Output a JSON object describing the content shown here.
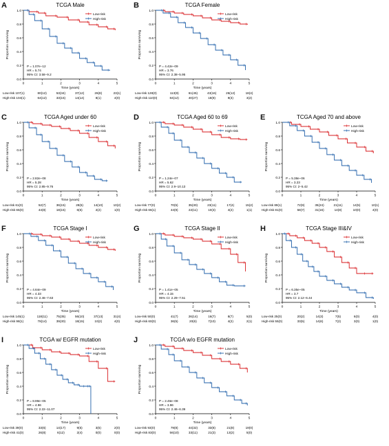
{
  "common": {
    "ylabel": "Proportion surviving",
    "xlabel": "Time (years)",
    "legend_low": "Low-risk",
    "legend_high": "High-risk",
    "low_color": "#d7191c",
    "high_color": "#1f5fa8"
  },
  "chart_data": [
    {
      "letter": "A",
      "type": "line",
      "title": "TCGA Male",
      "xlim": [
        0,
        5
      ],
      "ylim": [
        0,
        1
      ],
      "x_ticks": [
        "0",
        "1",
        "2",
        "3",
        "4",
        "5"
      ],
      "y_ticks": [
        "0.0",
        "0.2",
        "0.4",
        "0.6",
        "0.8",
        "1.0"
      ],
      "stats": [
        "P = 1.07e−12",
        "HR = 5.74",
        "95% CI: 3.58−9.2"
      ],
      "risk_low": [
        "Low-risk 107(1)",
        "80(12)",
        "53(34)",
        "37(12)",
        "26(8)",
        "23(1)"
      ],
      "risk_high": [
        "High-risk 104(1)",
        "64(12)",
        "33(15)",
        "14(14)",
        "8(1)",
        "4(0)"
      ],
      "series": [
        {
          "name": "Low-risk",
          "x": [
            0,
            0.3,
            0.8,
            1.2,
            1.8,
            2.4,
            3.0,
            3.5,
            4.0,
            4.5,
            4.9
          ],
          "y": [
            1,
            0.98,
            0.96,
            0.92,
            0.9,
            0.86,
            0.83,
            0.79,
            0.76,
            0.73,
            0.71
          ]
        },
        {
          "name": "High-risk",
          "x": [
            0,
            0.3,
            0.6,
            1.0,
            1.4,
            1.8,
            2.2,
            2.6,
            3.0,
            3.4,
            3.8,
            4.2,
            4.6
          ],
          "y": [
            1,
            0.94,
            0.85,
            0.73,
            0.62,
            0.52,
            0.45,
            0.38,
            0.3,
            0.24,
            0.19,
            0.13,
            0.12
          ]
        }
      ]
    },
    {
      "letter": "B",
      "type": "line",
      "title": "TCGA Female",
      "xlim": [
        0,
        5
      ],
      "ylim": [
        0,
        1
      ],
      "x_ticks": [
        "0",
        "1",
        "2",
        "3",
        "4",
        "5"
      ],
      "y_ticks": [
        "0.0",
        "0.2",
        "0.4",
        "0.6",
        "0.8",
        "1.0"
      ],
      "stats": [
        "P = 4.42e−09",
        "HR = 3.76",
        "95% CI: 2.38−5.95"
      ],
      "risk_low": [
        "Low-risk 128(0)",
        "113(9)",
        "61(45)",
        "43(16)",
        "26(12)",
        "18(4)"
      ],
      "risk_high": [
        "High-risk 110(0)",
        "84(12)",
        "40(27)",
        "18(9)",
        "9(3)",
        "3(2)"
      ],
      "series": [
        {
          "name": "Low-risk",
          "x": [
            0,
            0.5,
            1.0,
            1.5,
            2.0,
            2.5,
            3.0,
            3.5,
            4.0,
            4.5,
            4.9
          ],
          "y": [
            1,
            0.98,
            0.96,
            0.94,
            0.92,
            0.89,
            0.86,
            0.84,
            0.82,
            0.8,
            0.79
          ]
        },
        {
          "name": "High-risk",
          "x": [
            0,
            0.4,
            0.8,
            1.2,
            1.6,
            2.0,
            2.4,
            2.8,
            3.2,
            3.6,
            4.0,
            4.4,
            4.8
          ],
          "y": [
            1,
            0.96,
            0.9,
            0.82,
            0.75,
            0.67,
            0.59,
            0.5,
            0.42,
            0.35,
            0.28,
            0.2,
            0.13
          ]
        }
      ]
    },
    {
      "letter": "C",
      "type": "line",
      "title": "TCGA Aged under 60",
      "xlim": [
        0,
        5
      ],
      "ylim": [
        0,
        1
      ],
      "x_ticks": [
        "0",
        "1",
        "2",
        "3",
        "4",
        "5"
      ],
      "y_ticks": [
        "0.0",
        "0.2",
        "0.4",
        "0.6",
        "0.8",
        "1.0"
      ],
      "stats": [
        "P = 2.82e−08",
        "HR = 5.28",
        "95% CI: 2.85−9.76"
      ],
      "risk_low": [
        "Low-risk 61(0)",
        "52(7)",
        "36(15)",
        "28(6)",
        "14(10)",
        "10(2)"
      ],
      "risk_high": [
        "High-risk 65(0)",
        "44(8)",
        "18(15)",
        "6(6)",
        "2(2)",
        "1(0)"
      ],
      "series": [
        {
          "name": "Low-risk",
          "x": [
            0,
            0.5,
            1.0,
            1.5,
            2.0,
            2.5,
            3.0,
            3.5,
            4.0,
            4.5,
            4.9
          ],
          "y": [
            1,
            0.98,
            0.96,
            0.94,
            0.91,
            0.88,
            0.84,
            0.78,
            0.72,
            0.66,
            0.62
          ]
        },
        {
          "name": "High-risk",
          "x": [
            0,
            0.3,
            0.7,
            1.0,
            1.4,
            1.8,
            2.2,
            2.6,
            3.0,
            3.4,
            3.8,
            4.2,
            4.5
          ],
          "y": [
            1,
            0.92,
            0.82,
            0.72,
            0.62,
            0.52,
            0.43,
            0.35,
            0.27,
            0.22,
            0.17,
            0.15,
            0.15
          ]
        }
      ]
    },
    {
      "letter": "D",
      "type": "line",
      "title": "TCGA Aged 60 to 69",
      "xlim": [
        0,
        5
      ],
      "ylim": [
        0,
        1
      ],
      "x_ticks": [
        "0",
        "1",
        "2",
        "3",
        "4",
        "5"
      ],
      "y_ticks": [
        "0.0",
        "0.2",
        "0.4",
        "0.6",
        "0.8",
        "1.0"
      ],
      "stats": [
        "P = 1.24e−07",
        "HR = 5.62",
        "95% CI: 2.9−10.13"
      ],
      "risk_low": [
        "Low-risk 77(0)",
        "70(5)",
        "35(30)",
        "23(11)",
        "17(4)",
        "15(2)"
      ],
      "risk_high": [
        "High-risk 66(1)",
        "44(9)",
        "22(11)",
        "10(3)",
        "4(2)",
        "1(1)"
      ],
      "series": [
        {
          "name": "Low-risk",
          "x": [
            0,
            0.5,
            1.0,
            1.5,
            2.0,
            2.5,
            3.0,
            3.5,
            4.0,
            4.5,
            4.9
          ],
          "y": [
            1,
            0.98,
            0.96,
            0.93,
            0.9,
            0.86,
            0.82,
            0.78,
            0.76,
            0.75,
            0.75
          ]
        },
        {
          "name": "High-risk",
          "x": [
            0,
            0.3,
            0.7,
            1.0,
            1.4,
            1.8,
            2.2,
            2.6,
            3.0,
            3.4,
            3.8,
            4.2,
            4.6
          ],
          "y": [
            1,
            0.93,
            0.84,
            0.74,
            0.64,
            0.56,
            0.48,
            0.4,
            0.33,
            0.26,
            0.2,
            0.13,
            0.13
          ]
        }
      ]
    },
    {
      "letter": "E",
      "type": "line",
      "title": "TCGA Aged 70 and above",
      "xlim": [
        0,
        5
      ],
      "ylim": [
        0,
        1
      ],
      "x_ticks": [
        "0",
        "1",
        "2",
        "3",
        "4",
        "5"
      ],
      "y_ticks": [
        "0.0",
        "0.2",
        "0.4",
        "0.6",
        "0.8",
        "1.0"
      ],
      "stats": [
        "P = 5.38e−06",
        "HR = 3.23",
        "95% CI: 2−5.42"
      ],
      "risk_low": [
        "Low-risk 89(1)",
        "72(9)",
        "35(24)",
        "21(11)",
        "14(5)",
        "10(1)"
      ],
      "risk_high": [
        "High-risk 81(0)",
        "58(7)",
        "31(16)",
        "14(8)",
        "10(0)",
        "4(0)"
      ],
      "series": [
        {
          "name": "Low-risk",
          "x": [
            0,
            0.5,
            1.0,
            1.5,
            2.0,
            2.5,
            3.0,
            3.5,
            4.0,
            4.5,
            4.9
          ],
          "y": [
            1,
            0.97,
            0.94,
            0.9,
            0.86,
            0.81,
            0.76,
            0.7,
            0.64,
            0.58,
            0.55
          ]
        },
        {
          "name": "High-risk",
          "x": [
            0,
            0.4,
            0.8,
            1.2,
            1.6,
            2.0,
            2.4,
            2.8,
            3.2,
            3.6,
            4.0,
            4.4,
            4.8
          ],
          "y": [
            1,
            0.95,
            0.88,
            0.8,
            0.71,
            0.62,
            0.53,
            0.45,
            0.37,
            0.3,
            0.23,
            0.17,
            0.12
          ]
        }
      ]
    },
    {
      "letter": "F",
      "type": "line",
      "title": "TCGA Stage I",
      "xlim": [
        0,
        5
      ],
      "ylim": [
        0,
        1
      ],
      "x_ticks": [
        "0",
        "1",
        "2",
        "3",
        "4",
        "5"
      ],
      "y_ticks": [
        "0.0",
        "0.2",
        "0.4",
        "0.6",
        "0.8",
        "1.0"
      ],
      "stats": [
        "P = 4.64e−09",
        "HR = 4.33",
        "95% CI: 2.46−7.63"
      ],
      "risk_low": [
        "Low-risk 145(1)",
        "118(11)",
        "75(35)",
        "56(10)",
        "37(13)",
        "31(4)"
      ],
      "risk_high": [
        "High-risk 98(1)",
        "78(14)",
        "39(30)",
        "18(15)",
        "10(2)",
        "4(0)"
      ],
      "series": [
        {
          "name": "Low-risk",
          "x": [
            0,
            0.5,
            1.0,
            1.5,
            2.0,
            2.5,
            3.0,
            3.5,
            4.0,
            4.5,
            4.9
          ],
          "y": [
            1,
            0.99,
            0.97,
            0.95,
            0.92,
            0.89,
            0.86,
            0.83,
            0.8,
            0.77,
            0.75
          ]
        },
        {
          "name": "High-risk",
          "x": [
            0,
            0.4,
            0.8,
            1.2,
            1.6,
            2.0,
            2.4,
            2.8,
            3.2,
            3.6,
            4.0,
            4.4,
            4.8
          ],
          "y": [
            1,
            0.96,
            0.9,
            0.83,
            0.75,
            0.66,
            0.57,
            0.49,
            0.42,
            0.36,
            0.3,
            0.23,
            0.18
          ]
        }
      ]
    },
    {
      "letter": "G",
      "type": "line",
      "title": "TCGA Stage II",
      "xlim": [
        0,
        5
      ],
      "ylim": [
        0,
        1
      ],
      "x_ticks": [
        "0",
        "1",
        "2",
        "3",
        "4",
        "5"
      ],
      "y_ticks": [
        "0.0",
        "0.2",
        "0.4",
        "0.6",
        "0.8",
        "1.0"
      ],
      "stats": [
        "P = 1.41e−05",
        "HR = 4.15",
        "95% CI: 2.29−7.51"
      ],
      "risk_low": [
        "Low-risk 50(0)",
        "41(7)",
        "26(14)",
        "16(7)",
        "8(7)",
        "5(0)"
      ],
      "risk_high": [
        "High-risk 60(0)",
        "36(5)",
        "20(6)",
        "7(10)",
        "4(2)",
        "2(1)"
      ],
      "series": [
        {
          "name": "Low-risk",
          "x": [
            0,
            0.5,
            1.0,
            1.5,
            2.0,
            2.5,
            3.0,
            3.5,
            4.0,
            4.4,
            4.8
          ],
          "y": [
            1,
            0.98,
            0.96,
            0.94,
            0.92,
            0.89,
            0.85,
            0.78,
            0.7,
            0.58,
            0.45
          ]
        },
        {
          "name": "High-risk",
          "x": [
            0,
            0.3,
            0.6,
            1.0,
            1.4,
            1.8,
            2.2,
            2.6,
            3.0,
            3.4,
            3.8,
            4.2,
            4.8
          ],
          "y": [
            1,
            0.92,
            0.82,
            0.72,
            0.62,
            0.55,
            0.48,
            0.42,
            0.36,
            0.3,
            0.25,
            0.24,
            0.24
          ]
        }
      ]
    },
    {
      "letter": "H",
      "type": "line",
      "title": "TCGA Stage III&IV",
      "xlim": [
        0,
        5
      ],
      "ylim": [
        0,
        1
      ],
      "x_ticks": [
        "0",
        "1",
        "2",
        "3",
        "4",
        "5"
      ],
      "y_ticks": [
        "0.0",
        "0.2",
        "0.4",
        "0.6",
        "0.8",
        "1.0"
      ],
      "stats": [
        "P = 6.35e−05",
        "HR = 3.7",
        "95% CI: 2.12−6.44"
      ],
      "risk_low": [
        "Low-risk 25(0)",
        "20(2)",
        "14(3)",
        "7(5)",
        "6(0)",
        "4(0)"
      ],
      "risk_high": [
        "High-risk 55(0)",
        "33(5)",
        "14(6)",
        "7(2)",
        "3(0)",
        "1(0)"
      ],
      "series": [
        {
          "name": "Low-risk",
          "x": [
            0,
            0.4,
            0.8,
            1.2,
            1.6,
            2.0,
            2.4,
            2.8,
            3.2,
            3.6,
            4.0,
            4.5,
            4.9
          ],
          "y": [
            1,
            0.97,
            0.94,
            0.9,
            0.86,
            0.8,
            0.74,
            0.66,
            0.58,
            0.5,
            0.42,
            0.42,
            0.42
          ]
        },
        {
          "name": "High-risk",
          "x": [
            0,
            0.2,
            0.5,
            0.8,
            1.1,
            1.4,
            1.7,
            2.0,
            2.4,
            2.8,
            3.2,
            3.6,
            4.0,
            4.5,
            4.9
          ],
          "y": [
            1,
            0.9,
            0.8,
            0.7,
            0.6,
            0.52,
            0.45,
            0.38,
            0.32,
            0.27,
            0.22,
            0.18,
            0.14,
            0.07,
            0.05
          ]
        }
      ]
    },
    {
      "letter": "I",
      "type": "line",
      "title": "TCGA w/ EGFR mutation",
      "xlim": [
        0,
        5
      ],
      "ylim": [
        0,
        1
      ],
      "x_ticks": [
        "0",
        "1",
        "2",
        "3",
        "4",
        "5"
      ],
      "y_ticks": [
        "0.0",
        "0.2",
        "0.4",
        "0.6",
        "0.8",
        "1.0"
      ],
      "stats": [
        "P = 8.99e−05",
        "HR = 4.96",
        "95% CI: 2.22−11.07"
      ],
      "risk_low": [
        "Low-risk 39(0)",
        "33(6)",
        "14(17)",
        "9(5)",
        "3(5)",
        "2(0)"
      ],
      "risk_high": [
        "High-risk 41(0)",
        "26(8)",
        "6(12)",
        "2(4)",
        "0(0)",
        "0(0)"
      ],
      "series": [
        {
          "name": "Low-risk",
          "x": [
            0,
            0.5,
            1.0,
            1.5,
            2.0,
            2.5,
            3.0,
            3.5,
            4.0,
            4.5,
            4.9
          ],
          "y": [
            1,
            0.96,
            0.93,
            0.9,
            0.88,
            0.86,
            0.84,
            0.76,
            0.66,
            0.47,
            0.47
          ]
        },
        {
          "name": "High-risk",
          "x": [
            0,
            0.3,
            0.6,
            0.9,
            1.2,
            1.5,
            1.8,
            2.1,
            2.4,
            2.7,
            3.0,
            3.3,
            3.5,
            3.6
          ],
          "y": [
            1,
            0.95,
            0.88,
            0.8,
            0.72,
            0.64,
            0.56,
            0.5,
            0.45,
            0.42,
            0.4,
            0.4,
            0.4,
            0.0
          ]
        }
      ]
    },
    {
      "letter": "J",
      "type": "line",
      "title": "TCGA w/o EGFR mutation",
      "xlim": [
        0,
        5
      ],
      "ylim": [
        0,
        1
      ],
      "x_ticks": [
        "0",
        "1",
        "2",
        "3",
        "4",
        "5"
      ],
      "y_ticks": [
        "0.0",
        "0.2",
        "0.4",
        "0.6",
        "0.8",
        "1.0"
      ],
      "stats": [
        "P = 2.46e−08",
        "HR = 3.96",
        "95% CI: 2.46−6.39"
      ],
      "risk_low": [
        "Low-risk 93(0)",
        "79(8)",
        "44(32)",
        "33(8)",
        "21(8)",
        "19(0)"
      ],
      "risk_high": [
        "High-risk 83(0)",
        "56(10)",
        "33(11)",
        "21(3)",
        "13(2)",
        "5(0)"
      ],
      "series": [
        {
          "name": "Low-risk",
          "x": [
            0,
            0.5,
            1.0,
            1.5,
            2.0,
            2.5,
            3.0,
            3.5,
            4.0,
            4.5,
            4.9
          ],
          "y": [
            1,
            0.98,
            0.95,
            0.92,
            0.89,
            0.85,
            0.8,
            0.76,
            0.72,
            0.66,
            0.6
          ]
        },
        {
          "name": "High-risk",
          "x": [
            0,
            0.3,
            0.7,
            1.0,
            1.4,
            1.8,
            2.2,
            2.6,
            3.0,
            3.4,
            3.8,
            4.2,
            4.6,
            4.9
          ],
          "y": [
            1,
            0.94,
            0.86,
            0.77,
            0.68,
            0.6,
            0.52,
            0.45,
            0.38,
            0.32,
            0.26,
            0.2,
            0.15,
            0.12
          ]
        }
      ]
    }
  ]
}
